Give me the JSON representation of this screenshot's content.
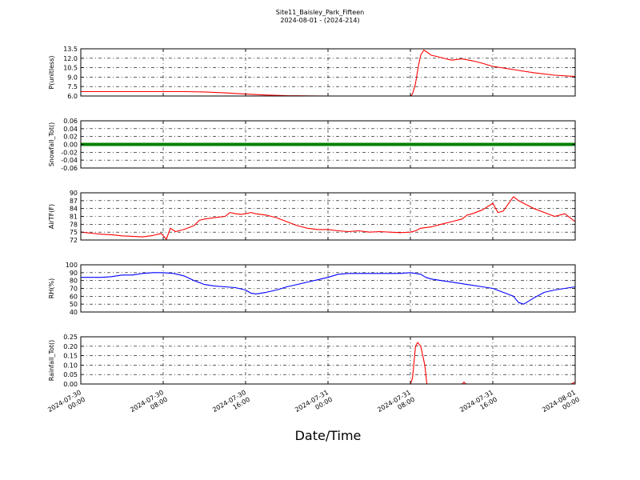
{
  "figure": {
    "title_line1": "Site11_Baisley_Park_Fifteen",
    "title_line2": "2024-08-01 - (2024-214)",
    "xlabel": "Date/Time",
    "x_tick_labels": [
      [
        "2024-07-30",
        "00:00"
      ],
      [
        "2024-07-30",
        "08:00"
      ],
      [
        "2024-07-30",
        "16:00"
      ],
      [
        "2024-07-31",
        "00:00"
      ],
      [
        "2024-07-31",
        "08:00"
      ],
      [
        "2024-07-31",
        "16:00"
      ],
      [
        "2024-08-01",
        "00:00"
      ]
    ]
  },
  "chart_data": [
    {
      "type": "line",
      "ylabel": "P(unitless)",
      "color": "#ff0000",
      "ylim": [
        6.0,
        13.5
      ],
      "yticks": [
        6.0,
        7.5,
        9.0,
        10.5,
        12.0,
        13.5
      ],
      "ytick_labels": [
        "6.0",
        "7.5",
        "9.0",
        "10.5",
        "12.0",
        "13.5"
      ],
      "x_hours": [
        0,
        4,
        8,
        10,
        12,
        14,
        16,
        18,
        20,
        24,
        28,
        32,
        32.2,
        32.5,
        32.8,
        33.0,
        33.3,
        33.6,
        34,
        35,
        36,
        37,
        38,
        39,
        40,
        42,
        44,
        46,
        48
      ],
      "y": [
        6.7,
        6.7,
        6.7,
        6.7,
        6.65,
        6.5,
        6.3,
        6.15,
        6.05,
        6.0,
        6.0,
        6.0,
        6.3,
        8.0,
        11.0,
        12.5,
        13.3,
        13.0,
        12.5,
        12.1,
        11.7,
        11.9,
        11.6,
        11.2,
        10.7,
        10.2,
        9.7,
        9.3,
        9.1
      ]
    },
    {
      "type": "line",
      "ylabel": "Snowfall_Tot()",
      "color": "#008000",
      "ylim": [
        -0.06,
        0.06
      ],
      "yticks": [
        -0.06,
        -0.04,
        -0.02,
        0.0,
        0.02,
        0.04,
        0.06
      ],
      "ytick_labels": [
        "-0.06",
        "-0.04",
        "-0.02",
        "0.00",
        "0.02",
        "0.04",
        "0.06"
      ],
      "x_hours": [
        0,
        48
      ],
      "y": [
        0.0,
        0.0
      ]
    },
    {
      "type": "line",
      "ylabel": "AirTF(F)",
      "color": "#ff0000",
      "ylim": [
        72,
        90
      ],
      "yticks": [
        72,
        75,
        78,
        81,
        84,
        87,
        90
      ],
      "ytick_labels": [
        "72",
        "75",
        "78",
        "81",
        "84",
        "87",
        "90"
      ],
      "x_hours": [
        0,
        1,
        2,
        3,
        4,
        5,
        6,
        7,
        7.8,
        8.3,
        8.7,
        9.2,
        10,
        11,
        11.5,
        12,
        13,
        14,
        14.5,
        15,
        15.5,
        16,
        16.5,
        17,
        18,
        19,
        20,
        21,
        22,
        23,
        24,
        25,
        26,
        27,
        28,
        29,
        30,
        31,
        32,
        32.5,
        33,
        34,
        35,
        36,
        37,
        37.5,
        38,
        39,
        40,
        40.5,
        41,
        42,
        42.5,
        43,
        44,
        45,
        46,
        47,
        48
      ],
      "y": [
        75,
        74.6,
        74.2,
        74.0,
        73.6,
        73.4,
        73.2,
        73.7,
        74.5,
        72.3,
        76.5,
        75.2,
        76.0,
        77.5,
        79.5,
        80.0,
        80.5,
        81.0,
        82.5,
        82.0,
        81.8,
        82.0,
        82.5,
        82.0,
        81.5,
        80.5,
        79.0,
        77.5,
        76.5,
        76.0,
        76.0,
        75.5,
        75.2,
        75.5,
        75.0,
        75.2,
        75.0,
        74.8,
        75.0,
        75.5,
        76.5,
        77.0,
        78.0,
        79.0,
        80.0,
        81.5,
        82.0,
        83.5,
        86.0,
        82.5,
        83.0,
        88.5,
        87.0,
        86.0,
        84.0,
        82.5,
        81.0,
        82.0,
        79.0
      ]
    },
    {
      "type": "line",
      "ylabel": "RH(%)",
      "color": "#0000ff",
      "ylim": [
        40,
        100
      ],
      "yticks": [
        40,
        50,
        60,
        70,
        80,
        90,
        100
      ],
      "ytick_labels": [
        "40",
        "50",
        "60",
        "70",
        "80",
        "90",
        "100"
      ],
      "x_hours": [
        0,
        1,
        2,
        3,
        4,
        5,
        6,
        7,
        8,
        9,
        10,
        11,
        12,
        13,
        14,
        15,
        16,
        16.5,
        17,
        18,
        19,
        20,
        21,
        22,
        23,
        24,
        25,
        26,
        27,
        28,
        29,
        30,
        31,
        32,
        33,
        33.5,
        34,
        35,
        36,
        37,
        38,
        39,
        40,
        41,
        42,
        42.5,
        43,
        44,
        45,
        46,
        47,
        48
      ],
      "y": [
        84,
        84,
        84,
        85,
        87,
        87,
        89,
        90,
        90,
        89,
        86,
        80,
        75,
        73,
        72,
        71,
        68,
        64,
        63,
        65,
        68,
        72,
        75,
        78,
        81,
        84,
        88,
        89,
        89,
        89,
        89,
        89,
        89,
        90,
        88,
        84,
        82,
        80,
        78,
        76,
        74,
        72,
        70,
        65,
        60,
        52,
        50,
        58,
        65,
        68,
        70,
        72
      ]
    },
    {
      "type": "line",
      "ylabel": "Rainfall_Tot()",
      "color": "#ff0000",
      "ylim": [
        0.0,
        0.25
      ],
      "yticks": [
        0.0,
        0.05,
        0.1,
        0.15,
        0.2,
        0.25
      ],
      "ytick_labels": [
        "0.00",
        "0.05",
        "0.10",
        "0.15",
        "0.20",
        "0.25"
      ],
      "x_hours": [
        0,
        32.0,
        32.2,
        32.5,
        32.7,
        33.0,
        33.2,
        33.4,
        33.6,
        34.0,
        37.0,
        37.2,
        37.4,
        47.6,
        48
      ],
      "y": [
        0.0,
        0.0,
        0.03,
        0.2,
        0.22,
        0.2,
        0.15,
        0.1,
        0.0,
        0.0,
        0.0,
        0.01,
        0.0,
        0.0,
        0.01
      ]
    }
  ]
}
